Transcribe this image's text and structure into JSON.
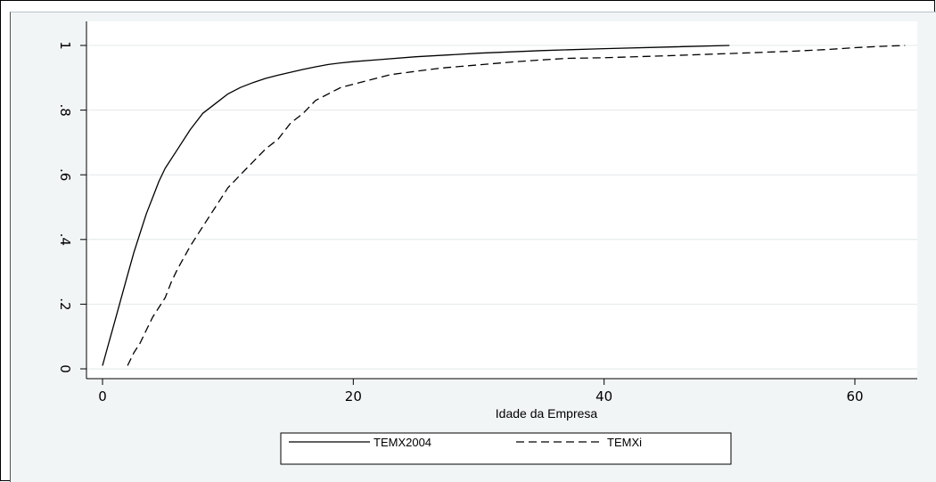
{
  "chart_data": {
    "type": "line",
    "xlabel": "Idade da Empresa",
    "ylabel": "",
    "xlim": [
      -2,
      65
    ],
    "ylim": [
      -0.04,
      1.05
    ],
    "x_ticks": [
      0,
      20,
      40,
      60
    ],
    "y_ticks": [
      0,
      0.2,
      0.4,
      0.6,
      0.8,
      1
    ],
    "x_tick_labels": [
      "0",
      "20",
      "40",
      "60"
    ],
    "y_tick_labels": [
      "0",
      ".2",
      ".4",
      ".6",
      ".8",
      "1"
    ],
    "grid": "horizontal",
    "legend_position": "bottom",
    "series": [
      {
        "name": "TEMX2004",
        "style": "solid",
        "color": "#000000",
        "points": [
          [
            0,
            0.01
          ],
          [
            0.5,
            0.08
          ],
          [
            1,
            0.15
          ],
          [
            1.5,
            0.22
          ],
          [
            2,
            0.29
          ],
          [
            2.5,
            0.36
          ],
          [
            3,
            0.42
          ],
          [
            3.5,
            0.48
          ],
          [
            4,
            0.53
          ],
          [
            4.5,
            0.58
          ],
          [
            5,
            0.62
          ],
          [
            6,
            0.68
          ],
          [
            7,
            0.74
          ],
          [
            8,
            0.79
          ],
          [
            9,
            0.82
          ],
          [
            10,
            0.85
          ],
          [
            11,
            0.87
          ],
          [
            12,
            0.885
          ],
          [
            13,
            0.898
          ],
          [
            14,
            0.908
          ],
          [
            15,
            0.917
          ],
          [
            16,
            0.926
          ],
          [
            17,
            0.934
          ],
          [
            18,
            0.941
          ],
          [
            19,
            0.946
          ],
          [
            20,
            0.95
          ],
          [
            22,
            0.956
          ],
          [
            25,
            0.965
          ],
          [
            30,
            0.976
          ],
          [
            35,
            0.984
          ],
          [
            40,
            0.99
          ],
          [
            45,
            0.995
          ],
          [
            50,
            1.0
          ]
        ]
      },
      {
        "name": "TEMXi",
        "style": "dashed",
        "color": "#000000",
        "points": [
          [
            2,
            0.01
          ],
          [
            2.5,
            0.05
          ],
          [
            3,
            0.08
          ],
          [
            3.5,
            0.12
          ],
          [
            4,
            0.16
          ],
          [
            4.5,
            0.19
          ],
          [
            5,
            0.22
          ],
          [
            5.5,
            0.27
          ],
          [
            6,
            0.31
          ],
          [
            7,
            0.38
          ],
          [
            8,
            0.44
          ],
          [
            9,
            0.5
          ],
          [
            10,
            0.56
          ],
          [
            11,
            0.6
          ],
          [
            12,
            0.64
          ],
          [
            13,
            0.68
          ],
          [
            14,
            0.71
          ],
          [
            15,
            0.76
          ],
          [
            16,
            0.79
          ],
          [
            17,
            0.83
          ],
          [
            18,
            0.85
          ],
          [
            19,
            0.87
          ],
          [
            20,
            0.88
          ],
          [
            21,
            0.89
          ],
          [
            22,
            0.9
          ],
          [
            23,
            0.91
          ],
          [
            25,
            0.92
          ],
          [
            27,
            0.93
          ],
          [
            30,
            0.94
          ],
          [
            33,
            0.95
          ],
          [
            35,
            0.955
          ],
          [
            37,
            0.96
          ],
          [
            40,
            0.962
          ],
          [
            45,
            0.968
          ],
          [
            50,
            0.975
          ],
          [
            55,
            0.982
          ],
          [
            58,
            0.988
          ],
          [
            60,
            0.993
          ],
          [
            62,
            0.997
          ],
          [
            64,
            1.0
          ]
        ]
      }
    ]
  }
}
